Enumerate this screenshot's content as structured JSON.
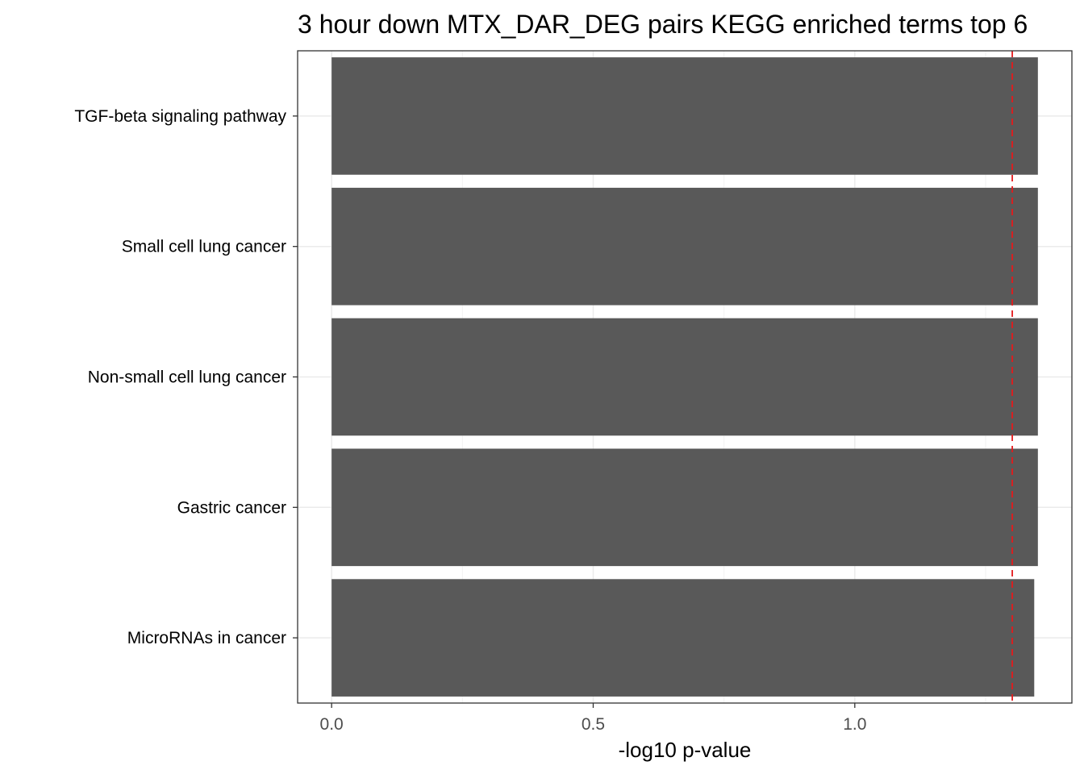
{
  "chart_data": {
    "type": "bar",
    "orientation": "horizontal",
    "title": "3 hour down MTX_DAR_DEG pairs  KEGG enriched terms top 6",
    "xlabel": "-log10 p-value",
    "ylabel": "",
    "categories": [
      "TGF-beta signaling pathway",
      "Small cell lung cancer",
      "Non-small cell lung cancer",
      "Gastric cancer",
      "MicroRNAs in cancer"
    ],
    "values": [
      1.35,
      1.35,
      1.35,
      1.35,
      1.343
    ],
    "xlim": [
      -0.065,
      1.415
    ],
    "x_ticks": [
      0.0,
      0.5,
      1.0
    ],
    "x_tick_labels": [
      "0.0",
      "0.5",
      "1.0"
    ],
    "reference_line": {
      "x": 1.301,
      "style": "dashed",
      "color": "#e41a1c"
    },
    "bar_color": "#595959",
    "grid": true,
    "theme": "bw"
  }
}
